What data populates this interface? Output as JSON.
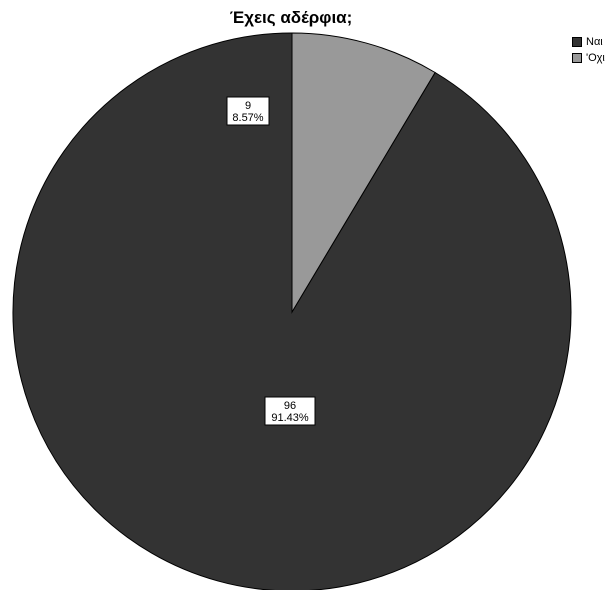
{
  "chart_data": {
    "type": "pie",
    "title": "Έχεις αδέρφια;",
    "slices": [
      {
        "name": "Ναι",
        "value": 96,
        "percent": "91.43%",
        "color": "#333333"
      },
      {
        "name": "'Οχι",
        "value": 9,
        "percent": "8.57%",
        "color": "#999999"
      }
    ],
    "start_angle": "12 o'clock",
    "direction": "counterclockwise",
    "legend_position": "top-right"
  }
}
